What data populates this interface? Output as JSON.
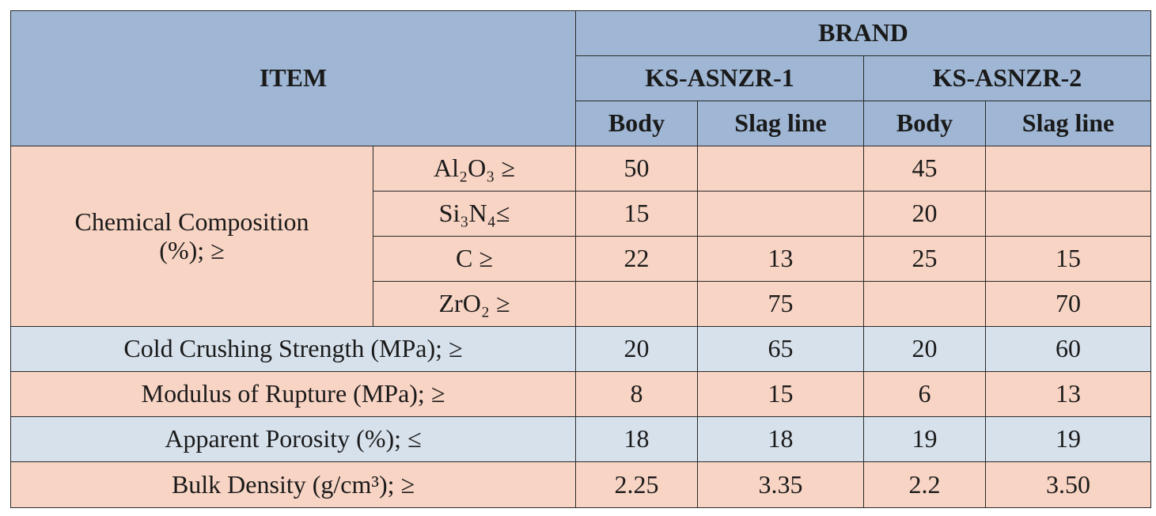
{
  "header": {
    "item": "ITEM",
    "brand": "BRAND",
    "brands": [
      "KS-ASNZR-1",
      "KS-ASNZR-2"
    ],
    "sub": [
      "Body",
      "Slag line",
      "Body",
      "Slag line"
    ]
  },
  "chemical": {
    "label_line1": "Chemical Composition",
    "label_line2": "(%); ≥",
    "rows": [
      {
        "label": "Al₂O₃ ≥",
        "values": [
          "50",
          "",
          "45",
          ""
        ]
      },
      {
        "label": "Si₃N₄≤",
        "values": [
          "15",
          "",
          "20",
          ""
        ]
      },
      {
        "label": "C ≥",
        "values": [
          "22",
          "13",
          "25",
          "15"
        ]
      },
      {
        "label": "ZrO₂ ≥",
        "values": [
          "",
          "75",
          "",
          "70"
        ]
      }
    ]
  },
  "properties": [
    {
      "label": "Cold Crushing Strength (MPa); ≥",
      "values": [
        "20",
        "65",
        "20",
        "60"
      ],
      "bg": "#d7e1ec"
    },
    {
      "label": "Modulus of Rupture (MPa); ≥",
      "values": [
        "8",
        "15",
        "6",
        "13"
      ],
      "bg": "#f8d4c4"
    },
    {
      "label": "Apparent Porosity (%); ≤",
      "values": [
        "18",
        "18",
        "19",
        "19"
      ],
      "bg": "#d7e1ec"
    },
    {
      "label": "Bulk Density (g/cm³); ≥",
      "values": [
        "2.25",
        "3.35",
        "2.2",
        "3.50"
      ],
      "bg": "#f8d4c4"
    }
  ],
  "colors": {
    "header": "#9fb6d4",
    "pink": "#f8d4c4",
    "blue": "#d7e1ec",
    "border": "#2a2a2a"
  }
}
